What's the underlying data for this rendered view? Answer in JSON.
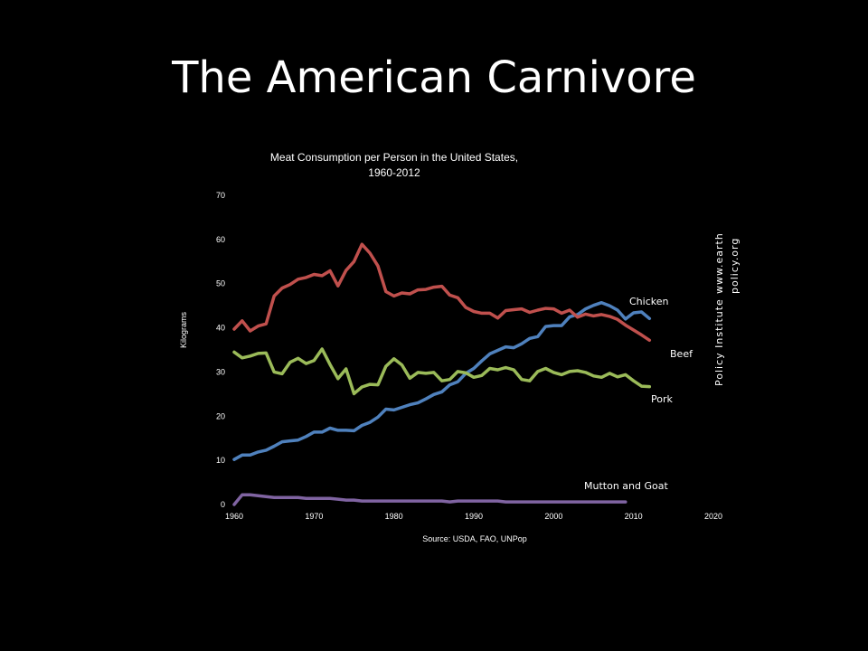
{
  "slide": {
    "title": "The American Carnivore"
  },
  "credit": {
    "line1": "Policy Institute",
    "line2a": "www.earth",
    "line2b": "policy.org"
  },
  "colors": {
    "background": "#000000",
    "Chicken": "#4f81bd",
    "Beef": "#c0504d",
    "Pork": "#9bbb59",
    "Mutton and Goat": "#8064a2"
  },
  "chart_data": {
    "type": "line",
    "title_line1": "Meat Consumption per Person in the United States,",
    "title_line2": "1960-2012",
    "xlabel": "Source: USDA, FAO, UNPop",
    "ylabel": "Kilograms",
    "xlim": [
      1960,
      2020
    ],
    "ylim": [
      0,
      70
    ],
    "xticks": [
      1960,
      1970,
      1980,
      1990,
      2000,
      2010,
      2020
    ],
    "yticks": [
      0,
      10,
      20,
      30,
      40,
      50,
      60,
      70
    ],
    "grid": false,
    "legend": "labels at line ends",
    "x": [
      1960,
      1961,
      1962,
      1963,
      1964,
      1965,
      1966,
      1967,
      1968,
      1969,
      1970,
      1971,
      1972,
      1973,
      1974,
      1975,
      1976,
      1977,
      1978,
      1979,
      1980,
      1981,
      1982,
      1983,
      1984,
      1985,
      1986,
      1987,
      1988,
      1989,
      1990,
      1991,
      1992,
      1993,
      1994,
      1995,
      1996,
      1997,
      1998,
      1999,
      2000,
      2001,
      2002,
      2003,
      2004,
      2005,
      2006,
      2007,
      2008,
      2009,
      2010,
      2011,
      2012
    ],
    "series": [
      {
        "name": "Chicken",
        "values": [
          10.2,
          11.2,
          11.2,
          11.9,
          12.3,
          13.2,
          14.2,
          14.4,
          14.6,
          15.4,
          16.4,
          16.4,
          17.3,
          16.8,
          16.8,
          16.7,
          17.9,
          18.6,
          19.8,
          21.6,
          21.4,
          22.0,
          22.6,
          23.0,
          23.9,
          24.9,
          25.5,
          27.1,
          27.8,
          29.7,
          30.8,
          32.5,
          34.1,
          34.9,
          35.7,
          35.5,
          36.4,
          37.6,
          38.0,
          40.3,
          40.5,
          40.5,
          42.5,
          43.0,
          44.3,
          45.1,
          45.7,
          45.0,
          44.0,
          42.0,
          43.4,
          43.6,
          42.1
        ]
      },
      {
        "name": "Beef",
        "values": [
          39.7,
          41.6,
          39.3,
          40.4,
          40.9,
          47.2,
          49.0,
          49.8,
          51.0,
          51.4,
          52.1,
          51.8,
          52.9,
          49.5,
          53.0,
          55.0,
          58.9,
          56.9,
          54.0,
          48.2,
          47.2,
          47.9,
          47.7,
          48.6,
          48.7,
          49.2,
          49.4,
          47.4,
          46.8,
          44.6,
          43.7,
          43.3,
          43.3,
          42.2,
          43.9,
          44.1,
          44.3,
          43.5,
          44.0,
          44.4,
          44.3,
          43.3,
          44.0,
          42.4,
          43.1,
          42.7,
          43.0,
          42.6,
          41.9,
          40.6,
          39.5,
          38.4,
          37.2
        ]
      },
      {
        "name": "Pork",
        "values": [
          34.5,
          33.2,
          33.6,
          34.2,
          34.3,
          30.0,
          29.6,
          32.2,
          33.1,
          31.9,
          32.6,
          35.2,
          31.7,
          28.5,
          30.7,
          25.1,
          26.6,
          27.2,
          27.1,
          31.3,
          33.0,
          31.6,
          28.6,
          29.9,
          29.7,
          29.9,
          28.0,
          28.3,
          30.1,
          29.8,
          28.8,
          29.2,
          30.8,
          30.5,
          31.0,
          30.5,
          28.3,
          28.0,
          30.1,
          30.8,
          29.9,
          29.4,
          30.1,
          30.3,
          29.9,
          29.1,
          28.8,
          29.7,
          28.9,
          29.4,
          28.0,
          26.8,
          26.7
        ]
      },
      {
        "name": "Mutton and Goat",
        "values": [
          0,
          2.2,
          2.2,
          2.0,
          1.8,
          1.6,
          1.6,
          1.6,
          1.6,
          1.4,
          1.4,
          1.4,
          1.4,
          1.2,
          1.0,
          1.0,
          0.8,
          0.8,
          0.8,
          0.8,
          0.8,
          0.8,
          0.8,
          0.8,
          0.8,
          0.8,
          0.8,
          0.6,
          0.8,
          0.8,
          0.8,
          0.8,
          0.8,
          0.8,
          0.6,
          0.6,
          0.6,
          0.6,
          0.6,
          0.6,
          0.6,
          0.6,
          0.6,
          0.6,
          0.6,
          0.6,
          0.6,
          0.6,
          0.6,
          0.6,
          null,
          null,
          null
        ]
      }
    ]
  }
}
